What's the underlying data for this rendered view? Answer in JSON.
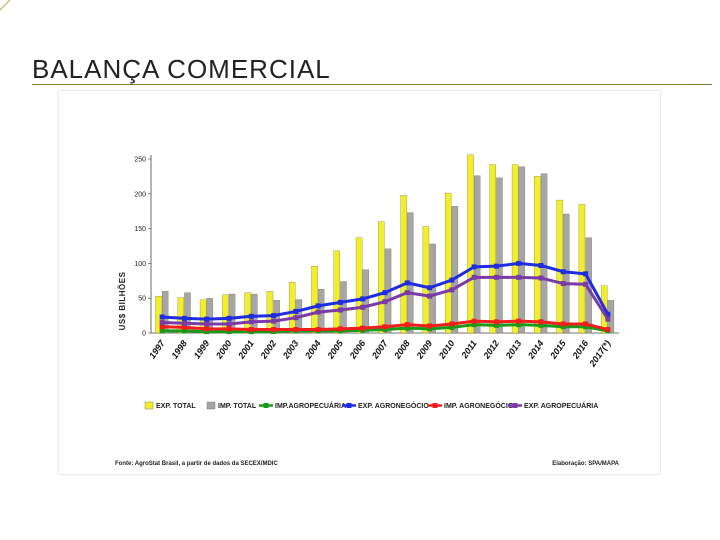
{
  "slide": {
    "title": "BALANÇA COMERCIAL",
    "accent_color": "#b8a85a"
  },
  "chart_data": {
    "type": "bar",
    "ylabel": "US$ BILHÕES",
    "ylim": [
      0,
      250
    ],
    "yticks": [
      0,
      50,
      100,
      150,
      200,
      250
    ],
    "categories": [
      "1997",
      "1998",
      "1999",
      "2000",
      "2001",
      "2002",
      "2003",
      "2004",
      "2005",
      "2006",
      "2007",
      "2008",
      "2009",
      "2010",
      "2011",
      "2012",
      "2013",
      "2014",
      "2015",
      "2016",
      "2017(*)"
    ],
    "bar_series": [
      {
        "name": "EXP. TOTAL",
        "color": "#f2ee2a",
        "values": [
          53,
          51,
          48,
          55,
          58,
          60,
          73,
          96,
          118,
          137,
          160,
          198,
          153,
          201,
          256,
          242,
          242,
          225,
          191,
          185,
          68
        ]
      },
      {
        "name": "IMP. TOTAL",
        "color": "#a6a6a6",
        "values": [
          60,
          58,
          50,
          56,
          56,
          47,
          48,
          63,
          74,
          91,
          121,
          173,
          128,
          182,
          226,
          223,
          239,
          229,
          171,
          137,
          47
        ]
      }
    ],
    "line_series": [
      {
        "name": "IMP.AGROPECUÁRIA",
        "color": "#1a9a1a",
        "values": [
          3,
          3,
          2,
          2,
          2,
          2,
          3,
          3,
          3,
          4,
          5,
          7,
          6,
          8,
          12,
          11,
          12,
          11,
          9,
          9,
          3
        ]
      },
      {
        "name": "EXP. AGRONEGÓCIO",
        "color": "#1f2ce0",
        "values": [
          23,
          21,
          20,
          21,
          24,
          25,
          31,
          39,
          44,
          49,
          58,
          72,
          65,
          76,
          95,
          96,
          100,
          97,
          88,
          85,
          27
        ]
      },
      {
        "name": "IMP. AGRONEGÓCIO",
        "color": "#f21d1d",
        "values": [
          9,
          8,
          6,
          6,
          5,
          5,
          5,
          5,
          6,
          7,
          9,
          12,
          10,
          13,
          17,
          16,
          17,
          16,
          13,
          13,
          5
        ]
      },
      {
        "name": "EXP. AGROPECUÁRIA",
        "color": "#7a3aa8",
        "values": [
          15,
          14,
          13,
          13,
          16,
          17,
          22,
          30,
          33,
          37,
          45,
          58,
          53,
          62,
          80,
          80,
          80,
          79,
          71,
          70,
          20
        ]
      }
    ],
    "legend_order": [
      "EXP. TOTAL",
      "IMP. TOTAL",
      "IMP.AGROPECUÁRIA",
      "EXP. AGRONEGÓCIO",
      "IMP. AGRONEGÓCIO",
      "EXP. AGROPECUÁRIA"
    ],
    "source": "Fonte: AgroStat Brasil, a partir de dados da SECEX/MDIC",
    "elaboration": "Elaboração: SPA/MAPA"
  }
}
